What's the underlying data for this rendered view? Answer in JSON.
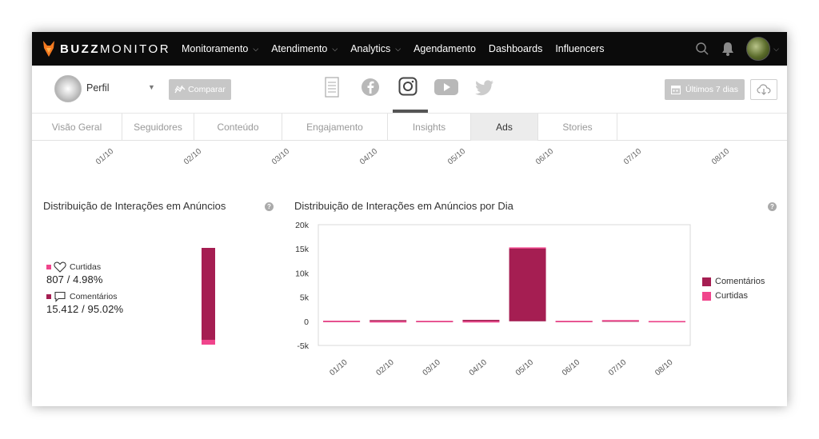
{
  "app": {
    "logo_bold": "BUZZ",
    "logo_rest": "MONITOR"
  },
  "nav": {
    "items": [
      {
        "label": "Monitoramento",
        "dropdown": true
      },
      {
        "label": "Atendimento",
        "dropdown": true
      },
      {
        "label": "Analytics",
        "dropdown": true
      },
      {
        "label": "Agendamento",
        "dropdown": false
      },
      {
        "label": "Dashboards",
        "dropdown": false
      },
      {
        "label": "Influencers",
        "dropdown": false
      }
    ]
  },
  "toolbar": {
    "profile_label": "Perfil",
    "compare_label": "Comparar",
    "period_label": "Últimos 7 dias"
  },
  "networks": [
    "document-icon",
    "facebook-icon",
    "instagram-icon",
    "youtube-icon",
    "twitter-icon"
  ],
  "active_network": "instagram-icon",
  "subtabs": [
    "Visão Geral",
    "Seguidores",
    "Conteúdo",
    "Engajamento",
    "Insights",
    "Ads",
    "Stories"
  ],
  "active_subtab": "Ads",
  "top_dates": [
    "01/10",
    "02/10",
    "03/10",
    "04/10",
    "05/10",
    "06/10",
    "07/10",
    "08/10"
  ],
  "left_panel": {
    "title": "Distribuição de Interações em Anúncios",
    "likes_label": "Curtidas",
    "likes_value": "807 / 4.98%",
    "comments_label": "Comentários",
    "comments_value": "15.412 / 95.02%"
  },
  "right_panel": {
    "title": "Distribuição de Interações em Anúncios por Dia"
  },
  "colors": {
    "comments": "#a51e52",
    "likes": "#f0458c",
    "navbar": "#0b0b0b"
  },
  "chart_data": [
    {
      "type": "bar",
      "stacked": true,
      "categories": [
        "Total"
      ],
      "series": [
        {
          "name": "Comentários",
          "values": [
            15412
          ]
        },
        {
          "name": "Curtidas",
          "values": [
            807
          ]
        }
      ],
      "share_percent": {
        "Curtidas": 4.98,
        "Comentários": 95.02
      }
    },
    {
      "type": "bar",
      "stacked": true,
      "categories": [
        "01/10",
        "02/10",
        "03/10",
        "04/10",
        "05/10",
        "06/10",
        "07/10",
        "08/10"
      ],
      "series": [
        {
          "name": "Comentários",
          "values": [
            80,
            250,
            60,
            300,
            15100,
            60,
            150,
            40
          ]
        },
        {
          "name": "Curtidas",
          "values": [
            40,
            -200,
            30,
            -250,
            200,
            30,
            100,
            20
          ]
        }
      ],
      "yticks": [
        "20k",
        "15k",
        "10k",
        "5k",
        "0",
        "-5k"
      ],
      "ylim": [
        -5000,
        20000
      ],
      "legend": "right"
    }
  ]
}
